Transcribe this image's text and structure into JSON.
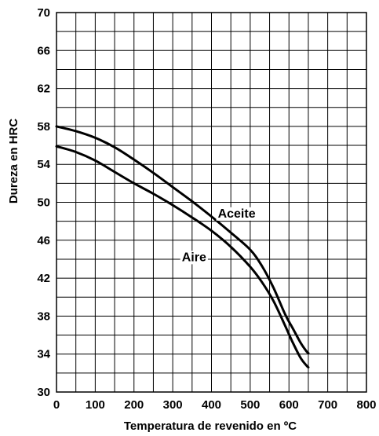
{
  "chart_data": {
    "type": "line",
    "title": "",
    "xlabel": "Temperatura de revenido en ºC",
    "ylabel": "Dureza en HRC",
    "xlim": [
      0,
      800
    ],
    "ylim": [
      30,
      70
    ],
    "x_ticks": [
      "0",
      "100",
      "200",
      "300",
      "400",
      "500",
      "600",
      "700",
      "800"
    ],
    "y_ticks": [
      "30",
      "34",
      "38",
      "42",
      "46",
      "50",
      "54",
      "58",
      "62",
      "66",
      "70"
    ],
    "grid": true,
    "legend": "none",
    "colors": {
      "line": "#000000",
      "grid": "#000000",
      "background": "#ffffff"
    },
    "series": [
      {
        "name": "Aceite",
        "label_at": [
          465,
          48.4
        ],
        "x": [
          0,
          50,
          100,
          150,
          200,
          250,
          300,
          350,
          400,
          450,
          500,
          530,
          560,
          590,
          610,
          630,
          645,
          650
        ],
        "y": [
          58.0,
          57.5,
          56.8,
          55.8,
          54.5,
          53.1,
          51.6,
          50.1,
          48.5,
          46.8,
          45.0,
          43.3,
          41.0,
          38.2,
          36.7,
          35.2,
          34.3,
          34.1
        ]
      },
      {
        "name": "Aire",
        "label_at": [
          355,
          43.8
        ],
        "x": [
          0,
          50,
          100,
          150,
          200,
          250,
          300,
          350,
          400,
          450,
          500,
          530,
          560,
          590,
          610,
          630,
          645,
          650
        ],
        "y": [
          55.9,
          55.3,
          54.4,
          53.2,
          52.0,
          50.9,
          49.7,
          48.4,
          47.0,
          45.3,
          43.2,
          41.6,
          39.6,
          37.0,
          35.2,
          33.6,
          32.8,
          32.6
        ]
      }
    ]
  }
}
